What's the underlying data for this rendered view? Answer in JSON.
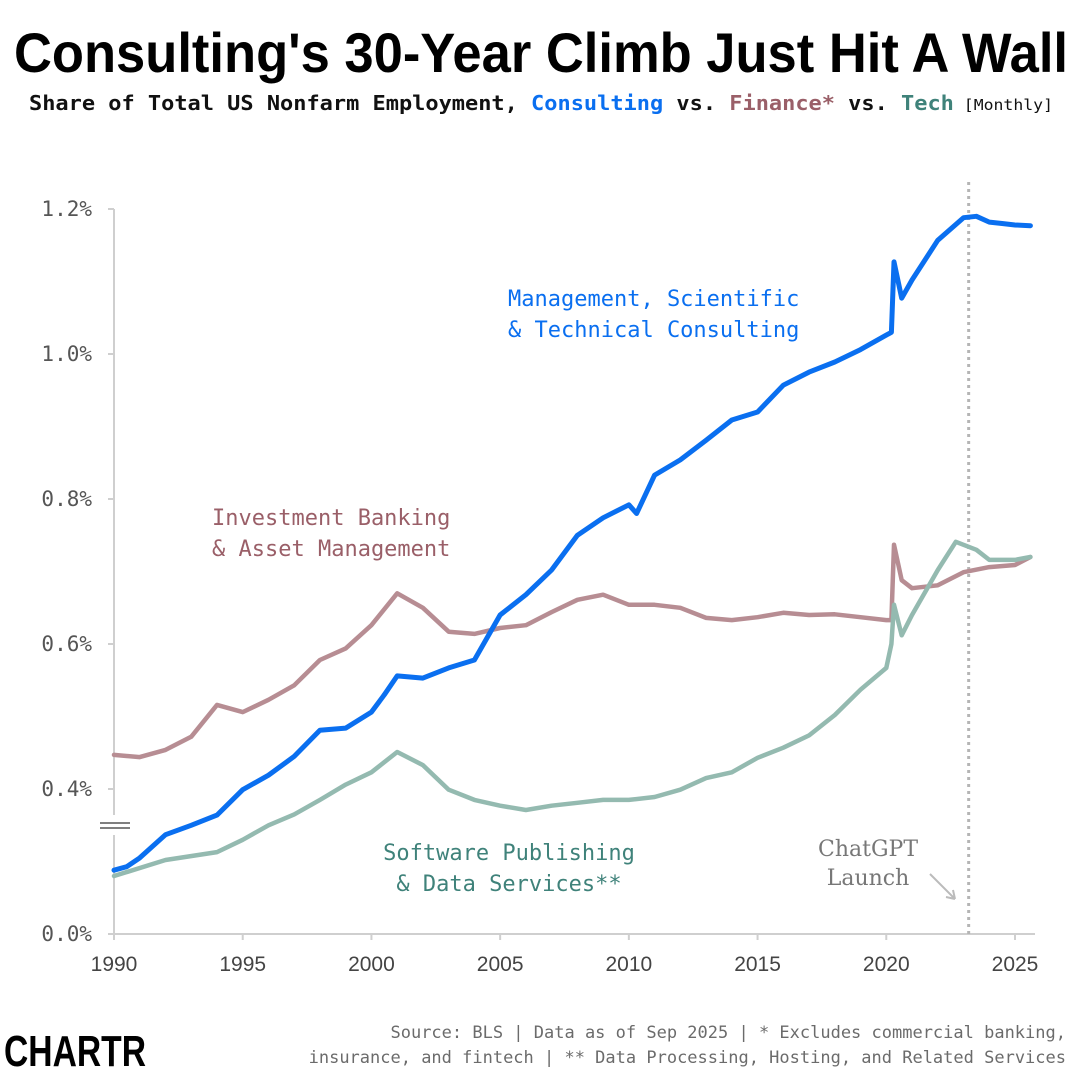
{
  "title": "Consulting's 30-Year Climb Just Hit A Wall",
  "subtitle": {
    "prefix": "Share of Total US Nonfarm Employment, ",
    "consulting": "Consulting",
    "vs1": " vs. ",
    "finance": "Finance*",
    "vs2": " vs. ",
    "tech": "Tech",
    "frequency": " [Monthly]"
  },
  "colors": {
    "consulting": "#0a6ff0",
    "finance": "#b78d93",
    "tech": "#94bab0",
    "finance_label": "#9a5f68",
    "tech_label": "#3f827a",
    "event_line": "#b5b5b5"
  },
  "chart_data": {
    "type": "line",
    "xlim": [
      1990,
      2025.75
    ],
    "ylim": [
      0.2,
      1.2
    ],
    "y_axis_break": true,
    "x_ticks": [
      1990,
      1995,
      2000,
      2005,
      2010,
      2015,
      2020,
      2025
    ],
    "y_ticks": [
      {
        "value": 0.0,
        "label": "0.0%"
      },
      {
        "value": 0.4,
        "label": "0.4%"
      },
      {
        "value": 0.6,
        "label": "0.6%"
      },
      {
        "value": 0.8,
        "label": "0.8%"
      },
      {
        "value": 1.0,
        "label": "1.0%"
      },
      {
        "value": 1.2,
        "label": "1.2%"
      }
    ],
    "grid": false,
    "series": [
      {
        "key": "consulting",
        "name": "Management, Scientific & Technical Consulting",
        "label_lines": [
          "Management, Scientific",
          "& Technical Consulting"
        ],
        "x": [
          1990,
          1990.5,
          1991,
          1992,
          1993,
          1994,
          1995,
          1996,
          1997,
          1998,
          1999,
          2000,
          2000.5,
          2001,
          2002,
          2003,
          2004,
          2005,
          2006,
          2007,
          2008,
          2009,
          2010,
          2010.3,
          2011,
          2012,
          2013,
          2014,
          2015,
          2016,
          2017,
          2018,
          2019,
          2020,
          2020.2,
          2020.3,
          2020.6,
          2021,
          2022,
          2023,
          2023.5,
          2024,
          2024.5,
          2025,
          2025.6
        ],
        "y": [
          0.288,
          0.293,
          0.305,
          0.337,
          0.35,
          0.364,
          0.399,
          0.419,
          0.445,
          0.481,
          0.484,
          0.506,
          0.53,
          0.556,
          0.553,
          0.567,
          0.578,
          0.64,
          0.668,
          0.702,
          0.75,
          0.774,
          0.792,
          0.78,
          0.833,
          0.854,
          0.881,
          0.909,
          0.92,
          0.957,
          0.975,
          0.989,
          1.006,
          1.026,
          1.03,
          1.127,
          1.077,
          1.102,
          1.157,
          1.188,
          1.19,
          1.182,
          1.18,
          1.178,
          1.177
        ]
      },
      {
        "key": "finance",
        "name": "Investment Banking & Asset Management",
        "label_lines": [
          "Investment Banking",
          "& Asset Management"
        ],
        "x": [
          1990,
          1991,
          1992,
          1993,
          1994,
          1995,
          1996,
          1997,
          1998,
          1999,
          2000,
          2001,
          2002,
          2003,
          2004,
          2005,
          2006,
          2007,
          2008,
          2009,
          2010,
          2011,
          2012,
          2013,
          2014,
          2015,
          2016,
          2017,
          2018,
          2019,
          2020,
          2020.2,
          2020.3,
          2020.6,
          2021,
          2022,
          2023,
          2024,
          2025,
          2025.6
        ],
        "y": [
          0.447,
          0.444,
          0.454,
          0.472,
          0.516,
          0.506,
          0.523,
          0.543,
          0.578,
          0.594,
          0.626,
          0.67,
          0.65,
          0.617,
          0.614,
          0.622,
          0.626,
          0.644,
          0.661,
          0.668,
          0.654,
          0.654,
          0.65,
          0.636,
          0.633,
          0.637,
          0.643,
          0.64,
          0.641,
          0.637,
          0.633,
          0.633,
          0.737,
          0.688,
          0.677,
          0.681,
          0.699,
          0.706,
          0.709,
          0.72
        ]
      },
      {
        "key": "tech",
        "name": "Software Publishing & Data Services**",
        "label_lines": [
          "Software Publishing",
          "& Data Services**"
        ],
        "x": [
          1990,
          1992,
          1994,
          1995,
          1996,
          1997,
          1998,
          1999,
          2000,
          2001,
          2002,
          2003,
          2004,
          2005,
          2006,
          2007,
          2008,
          2009,
          2010,
          2011,
          2012,
          2013,
          2014,
          2015,
          2016,
          2017,
          2018,
          2019,
          2020,
          2020.2,
          2020.3,
          2020.6,
          2021,
          2022,
          2022.7,
          2023.5,
          2024,
          2025,
          2025.6
        ],
        "y": [
          0.28,
          0.302,
          0.313,
          0.33,
          0.35,
          0.365,
          0.385,
          0.406,
          0.423,
          0.451,
          0.433,
          0.399,
          0.385,
          0.377,
          0.371,
          0.377,
          0.381,
          0.385,
          0.385,
          0.389,
          0.399,
          0.415,
          0.423,
          0.443,
          0.457,
          0.474,
          0.502,
          0.537,
          0.567,
          0.6,
          0.654,
          0.612,
          0.64,
          0.702,
          0.741,
          0.73,
          0.716,
          0.716,
          0.72
        ]
      }
    ],
    "annotations": [
      {
        "key": "chatgpt",
        "lines": [
          "ChatGPT",
          "Launch"
        ],
        "x": 2023.2
      }
    ]
  },
  "footer": {
    "logo": "CHARTR",
    "source_line1": "Source: BLS | Data as of Sep 2025 | * Excludes commercial banking,",
    "source_line2": "insurance, and fintech | ** Data Processing, Hosting, and Related Services"
  }
}
